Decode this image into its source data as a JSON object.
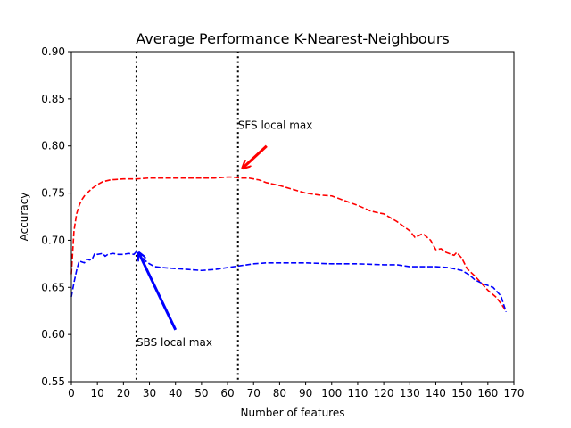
{
  "chart_data": {
    "type": "line",
    "title": "Average Performance K-Nearest-Neighbours",
    "xlabel": "Number of features",
    "ylabel": "Accuracy",
    "xlim": [
      0,
      170
    ],
    "ylim": [
      0.55,
      0.9
    ],
    "xticks": [
      0,
      10,
      20,
      30,
      40,
      50,
      60,
      70,
      80,
      90,
      100,
      110,
      120,
      130,
      140,
      150,
      160,
      170
    ],
    "xtick_labels": [
      "0",
      "10",
      "20",
      "30",
      "40",
      "50",
      "60",
      "70",
      "80",
      "90",
      "100",
      "110",
      "120",
      "130",
      "140",
      "150",
      "160",
      "170"
    ],
    "yticks": [
      0.55,
      0.6,
      0.65,
      0.7,
      0.75,
      0.8,
      0.85,
      0.9
    ],
    "ytick_labels": [
      "0.55",
      "0.60",
      "0.65",
      "0.70",
      "0.75",
      "0.80",
      "0.85",
      "0.90"
    ],
    "grid": false,
    "legend": false,
    "series": [
      {
        "color": "#ff0000",
        "style": "dashed",
        "x": [
          0,
          1,
          2,
          3,
          4,
          5,
          6,
          8,
          10,
          12,
          15,
          20,
          25,
          30,
          40,
          50,
          55,
          60,
          62,
          65,
          68,
          70,
          72,
          75,
          80,
          85,
          90,
          95,
          100,
          105,
          110,
          115,
          118,
          120,
          125,
          130,
          132,
          135,
          138,
          140,
          142,
          144,
          147,
          148,
          150,
          152,
          155,
          160,
          163,
          165,
          167
        ],
        "y": [
          0.664,
          0.71,
          0.728,
          0.737,
          0.743,
          0.747,
          0.75,
          0.755,
          0.759,
          0.762,
          0.764,
          0.765,
          0.765,
          0.766,
          0.766,
          0.766,
          0.766,
          0.767,
          0.767,
          0.766,
          0.766,
          0.765,
          0.764,
          0.761,
          0.758,
          0.754,
          0.75,
          0.748,
          0.747,
          0.742,
          0.737,
          0.731,
          0.729,
          0.728,
          0.72,
          0.71,
          0.703,
          0.707,
          0.7,
          0.69,
          0.691,
          0.687,
          0.684,
          0.687,
          0.681,
          0.67,
          0.662,
          0.647,
          0.64,
          0.633,
          0.625
        ]
      },
      {
        "color": "#0000ff",
        "style": "dashed",
        "x": [
          0,
          1,
          2,
          3,
          4,
          5,
          6,
          7,
          8,
          9,
          10,
          12,
          13,
          14,
          16,
          18,
          20,
          22,
          24,
          25,
          26,
          27,
          28,
          30,
          32,
          35,
          40,
          45,
          50,
          55,
          60,
          65,
          70,
          75,
          80,
          90,
          100,
          110,
          120,
          125,
          130,
          140,
          145,
          150,
          153,
          155,
          158,
          160,
          162,
          165,
          167
        ],
        "y": [
          0.64,
          0.655,
          0.668,
          0.678,
          0.677,
          0.676,
          0.68,
          0.679,
          0.68,
          0.686,
          0.685,
          0.686,
          0.683,
          0.685,
          0.686,
          0.685,
          0.685,
          0.686,
          0.685,
          0.688,
          0.687,
          0.685,
          0.679,
          0.675,
          0.672,
          0.671,
          0.67,
          0.669,
          0.668,
          0.669,
          0.671,
          0.673,
          0.675,
          0.676,
          0.676,
          0.676,
          0.675,
          0.675,
          0.674,
          0.674,
          0.672,
          0.672,
          0.671,
          0.668,
          0.663,
          0.658,
          0.654,
          0.652,
          0.65,
          0.641,
          0.624
        ]
      }
    ],
    "vlines": [
      {
        "x": 25,
        "color": "#000000",
        "style": "dotted"
      },
      {
        "x": 64,
        "color": "#000000",
        "style": "dotted"
      }
    ],
    "annotations": [
      {
        "text": "SFS local max",
        "arrow_color": "#ff0000",
        "text_x": 64,
        "text_y": 0.818,
        "tail_x": 75,
        "tail_y": 0.8,
        "head_x": 66,
        "head_y": 0.777
      },
      {
        "text": "SBS local max",
        "arrow_color": "#0000ff",
        "text_x": 25,
        "text_y": 0.588,
        "tail_x": 40,
        "tail_y": 0.605,
        "head_x": 26,
        "head_y": 0.686
      }
    ]
  }
}
